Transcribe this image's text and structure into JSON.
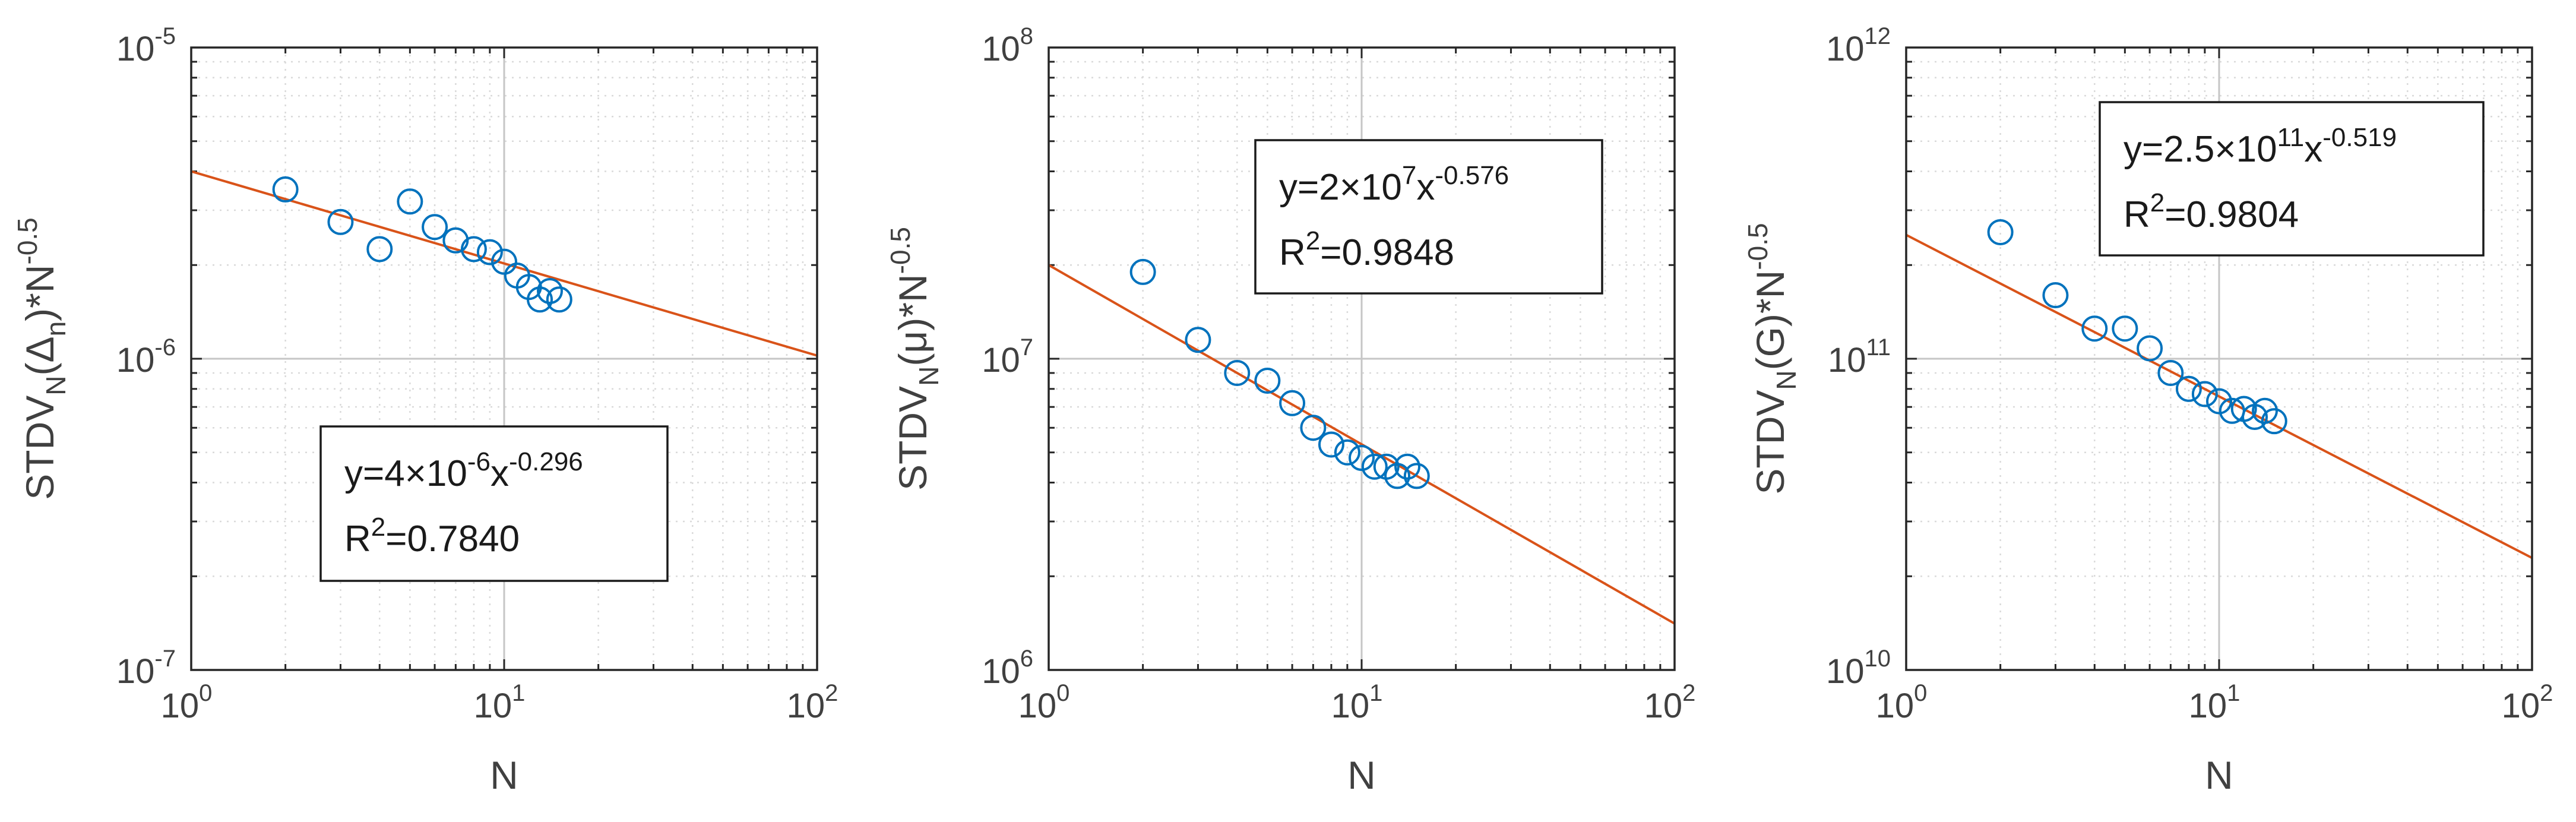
{
  "colors": {
    "marker": "#0072bd",
    "fit_line": "#d95319",
    "axes": "#262626",
    "grid_minor": "#dadada",
    "grid_major": "#c6c6c6",
    "text": "#404040"
  },
  "chart_data": [
    {
      "type": "scatter",
      "xscale": "log",
      "yscale": "log",
      "xlim": [
        1,
        100
      ],
      "ylim": [
        1e-07,
        1e-05
      ],
      "grid": "major and minor, dotted",
      "xlabel": "N",
      "ylabel": {
        "base": "STDV",
        "sub": "N",
        "arg": "(Δ",
        "arg_sub": "n",
        "tail": ")*N",
        "tail_sup": "-0.5"
      },
      "x_ticks": [
        {
          "base": "10",
          "exp": "0"
        },
        {
          "base": "10",
          "exp": "1"
        },
        {
          "base": "10",
          "exp": "2"
        }
      ],
      "y_ticks": [
        {
          "base": "10",
          "exp": "-7"
        },
        {
          "base": "10",
          "exp": "-6"
        },
        {
          "base": "10",
          "exp": "-5"
        }
      ],
      "series": [
        {
          "marker": "o",
          "x": [
            2,
            3,
            4,
            5,
            6,
            7,
            8,
            9,
            10,
            11,
            12,
            13,
            14,
            15
          ],
          "y": [
            3.5e-06,
            2.75e-06,
            2.25e-06,
            3.2e-06,
            2.65e-06,
            2.4e-06,
            2.25e-06,
            2.2e-06,
            2.05e-06,
            1.85e-06,
            1.7e-06,
            1.55e-06,
            1.65e-06,
            1.55e-06
          ]
        }
      ],
      "fit": {
        "a": 4e-06,
        "b": -0.296
      },
      "annotation": {
        "eq": {
          "pre": "y=4",
          "times": "×",
          "mid": "10",
          "mid_sup": "-6",
          "post": "x",
          "post_sup": "-0.296"
        },
        "r2": {
          "pre": "R",
          "sup": "2",
          "post": "=0.7840"
        },
        "position": "lower-middle"
      }
    },
    {
      "type": "scatter",
      "xscale": "log",
      "yscale": "log",
      "xlim": [
        1,
        100
      ],
      "ylim": [
        1000000.0,
        100000000.0
      ],
      "grid": "major and minor, dotted",
      "xlabel": "N",
      "ylabel": {
        "base": "STDV",
        "sub": "N",
        "arg": "(μ",
        "arg_sub": "",
        "tail": ")*N",
        "tail_sup": "-0.5"
      },
      "x_ticks": [
        {
          "base": "10",
          "exp": "0"
        },
        {
          "base": "10",
          "exp": "1"
        },
        {
          "base": "10",
          "exp": "2"
        }
      ],
      "y_ticks": [
        {
          "base": "10",
          "exp": "6"
        },
        {
          "base": "10",
          "exp": "7"
        },
        {
          "base": "10",
          "exp": "8"
        }
      ],
      "series": [
        {
          "marker": "o",
          "x": [
            2,
            3,
            4,
            5,
            6,
            7,
            8,
            9,
            10,
            11,
            12,
            13,
            14,
            15
          ],
          "y": [
            19000000.0,
            11500000.0,
            9000000.0,
            8500000.0,
            7200000.0,
            6000000.0,
            5300000.0,
            5000000.0,
            4800000.0,
            4500000.0,
            4500000.0,
            4200000.0,
            4500000.0,
            4200000.0
          ]
        }
      ],
      "fit": {
        "a": 20000000.0,
        "b": -0.576
      },
      "annotation": {
        "eq": {
          "pre": "y=2",
          "times": "×",
          "mid": "10",
          "mid_sup": "7",
          "post": "x",
          "post_sup": "-0.576"
        },
        "r2": {
          "pre": "R",
          "sup": "2",
          "post": "=0.9848"
        },
        "position": "upper-middle"
      }
    },
    {
      "type": "scatter",
      "xscale": "log",
      "yscale": "log",
      "xlim": [
        1,
        100
      ],
      "ylim": [
        10000000000.0,
        1000000000000.0
      ],
      "grid": "major and minor, dotted",
      "xlabel": "N",
      "ylabel": {
        "base": "STDV",
        "sub": "N",
        "arg": "(G)",
        "arg_sub": "",
        "tail": "*N",
        "tail_sup": "-0.5"
      },
      "x_ticks": [
        {
          "base": "10",
          "exp": "0"
        },
        {
          "base": "10",
          "exp": "1"
        },
        {
          "base": "10",
          "exp": "2"
        }
      ],
      "y_ticks": [
        {
          "base": "10",
          "exp": "10"
        },
        {
          "base": "10",
          "exp": "11"
        },
        {
          "base": "10",
          "exp": "12"
        }
      ],
      "series": [
        {
          "marker": "o",
          "x": [
            2,
            3,
            4,
            5,
            6,
            7,
            8,
            9,
            10,
            11,
            12,
            13,
            14,
            15
          ],
          "y": [
            255000000000.0,
            160000000000.0,
            125000000000.0,
            125000000000.0,
            108000000000.0,
            90000000000.0,
            80000000000.0,
            77000000000.0,
            73000000000.0,
            68000000000.0,
            69000000000.0,
            65000000000.0,
            68000000000.0,
            63000000000.0
          ]
        }
      ],
      "fit": {
        "a": 250000000000.0,
        "b": -0.519
      },
      "annotation": {
        "eq": {
          "pre": "y=2.5",
          "times": "×",
          "mid": "10",
          "mid_sup": "11",
          "post": "x",
          "post_sup": "-0.519"
        },
        "r2": {
          "pre": "R",
          "sup": "2",
          "post": "=0.9804"
        },
        "position": "top-right"
      }
    }
  ]
}
